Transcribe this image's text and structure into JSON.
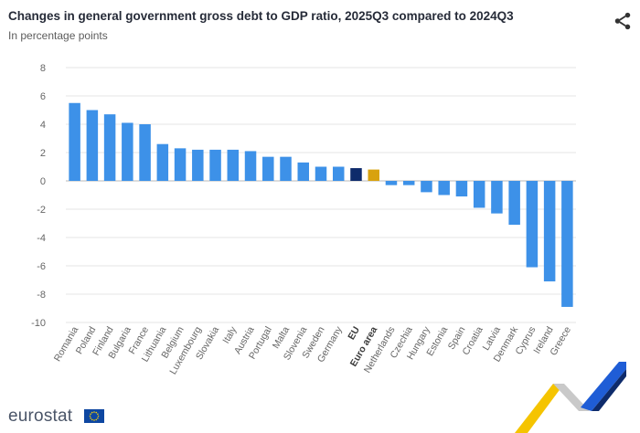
{
  "header": {
    "title": "Changes in general government gross debt to GDP ratio, 2025Q3 compared to 2024Q3",
    "subtitle": "In percentage points"
  },
  "toolbar": {
    "share_icon": "share-icon"
  },
  "footer": {
    "logo_text": "eurostat",
    "flag_icon": "eu-flag-icon"
  },
  "colors": {
    "country_bar": "#3d91e8",
    "eu_bar": "#0e2b6b",
    "euro_area_bar": "#d8a20e",
    "grid": "#e6e6e6"
  },
  "chart_data": {
    "type": "bar",
    "title": "Changes in general government gross debt to GDP ratio, 2025Q3 compared to 2024Q3",
    "subtitle": "In percentage points",
    "categories": [
      "Romania",
      "Poland",
      "Finland",
      "Bulgaria",
      "France",
      "Lithuania",
      "Belgium",
      "Luxembourg",
      "Slovakia",
      "Italy",
      "Austria",
      "Portugal",
      "Malta",
      "Slovenia",
      "Sweden",
      "Germany",
      "EU",
      "Euro area",
      "Netherlands",
      "Czechia",
      "Hungary",
      "Estonia",
      "Spain",
      "Croatia",
      "Latvia",
      "Denmark",
      "Cyprus",
      "Ireland",
      "Greece"
    ],
    "values": [
      5.5,
      5.0,
      4.7,
      4.1,
      4.0,
      2.6,
      2.3,
      2.2,
      2.2,
      2.2,
      2.1,
      1.7,
      1.7,
      1.3,
      1.0,
      1.0,
      0.9,
      0.8,
      -0.3,
      -0.3,
      -0.8,
      -1.0,
      -1.1,
      -1.9,
      -2.3,
      -3.1,
      -6.1,
      -7.1,
      -8.9
    ],
    "highlight": {
      "EU": "#0e2b6b",
      "Euro area": "#d8a20e"
    },
    "bold_labels": [
      "EU",
      "Euro area"
    ],
    "ylim": [
      -10,
      8
    ],
    "yticks": [
      8,
      6,
      4,
      2,
      0,
      -2,
      -4,
      -6,
      -8,
      -10
    ],
    "xlabel": "",
    "ylabel": "",
    "grid": true,
    "legend": "none"
  }
}
